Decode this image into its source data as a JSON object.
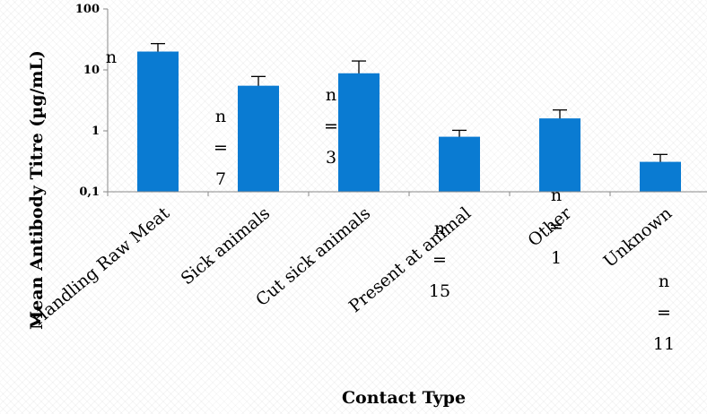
{
  "chart_data": {
    "type": "bar",
    "scale": "log",
    "categories": [
      "Handling Raw Meat",
      "Sick animals",
      "Cut sick animals",
      "Present at animal",
      "Other",
      "Unknown"
    ],
    "values": [
      20,
      5.5,
      8.8,
      0.8,
      1.6,
      0.31
    ],
    "error_low": [
      13.5,
      3.6,
      3.8,
      0.6,
      1.1,
      0.22
    ],
    "error_high": [
      27,
      7.8,
      14,
      1.02,
      2.2,
      0.41
    ],
    "ylim": [
      0.1,
      100
    ],
    "yticks": [
      0.1,
      1,
      10,
      100
    ],
    "ytick_labels": [
      "0,1",
      "1",
      "10",
      "100"
    ],
    "xlabel": "Contact Type",
    "ylabel": "Mean Antibody Titre (µg/mL)",
    "grid": false,
    "bar_color": "#0a7bd2",
    "annotations": [
      {
        "category": "Handling Raw Meat",
        "lines": [
          "n"
        ]
      },
      {
        "category": "Sick animals",
        "lines": [
          "n",
          "=",
          "7"
        ]
      },
      {
        "category": "Cut sick animals",
        "lines": [
          "n",
          "=",
          "3"
        ]
      },
      {
        "category": "Present at animal",
        "lines": [
          "n",
          "=",
          "15"
        ]
      },
      {
        "category": "Other",
        "lines": [
          "n",
          "=",
          "1"
        ]
      },
      {
        "category": "Unknown",
        "lines": [
          "n",
          "=",
          "11"
        ]
      }
    ]
  }
}
